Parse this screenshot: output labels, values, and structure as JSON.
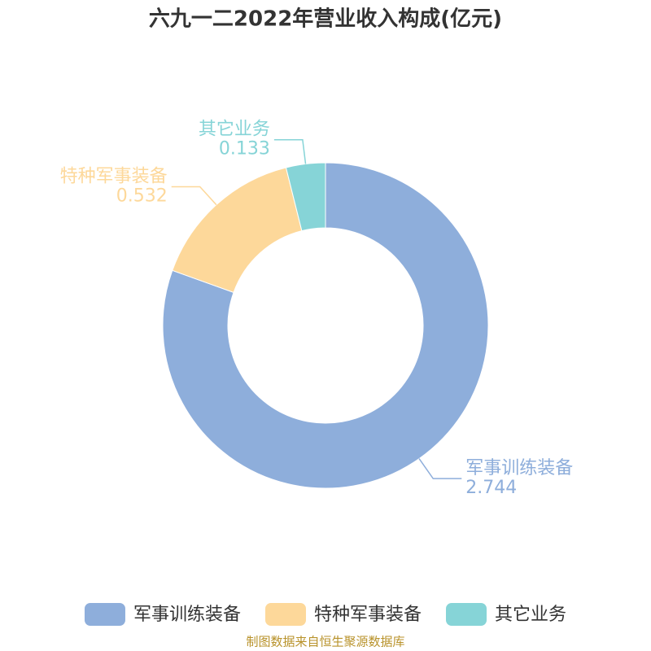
{
  "chart_data": {
    "type": "pie",
    "title": "六九一二2022年营业收入构成(亿元)",
    "categories": [
      "军事训练装备",
      "特种军事装备",
      "其它业务"
    ],
    "values": [
      2.744,
      0.532,
      0.133
    ],
    "colors": [
      "#8eaedb",
      "#fdd89a",
      "#86d4d7"
    ],
    "legend": "bottom",
    "source": "制图数据来自恒生聚源数据库"
  }
}
